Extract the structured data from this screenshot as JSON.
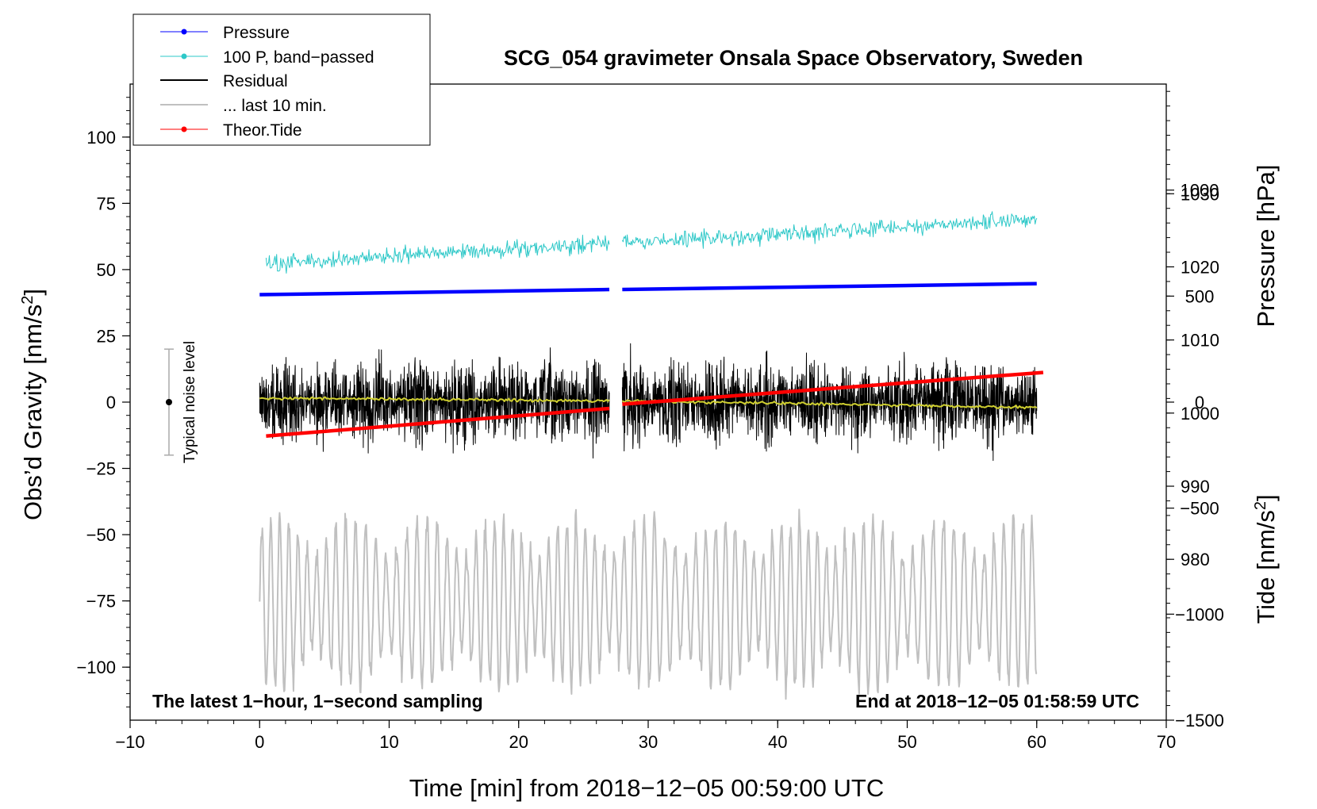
{
  "chart_data": {
    "type": "line",
    "title": "SCG_054 gravimeter Onsala Space Observatory, Sweden",
    "xlabel": "Time [min] from 2018−12−05 00:59:00 UTC",
    "ylabel_left": "Obs’d Gravity [nm/s²]",
    "ylabel_right_top": "Pressure [hPa]",
    "ylabel_right_bottom": "Tide [nm/s²]",
    "xlim": [
      -10,
      70
    ],
    "ylim_left": [
      -120,
      120
    ],
    "xticks": [
      {
        "v": -10,
        "label": "−10"
      },
      {
        "v": 0,
        "label": "0"
      },
      {
        "v": 10,
        "label": "10"
      },
      {
        "v": 20,
        "label": "20"
      },
      {
        "v": 30,
        "label": "30"
      },
      {
        "v": 40,
        "label": "40"
      },
      {
        "v": 50,
        "label": "50"
      },
      {
        "v": 60,
        "label": "60"
      },
      {
        "v": 70,
        "label": "70"
      }
    ],
    "yticks_left": [
      {
        "v": 100,
        "label": "100"
      },
      {
        "v": 75,
        "label": "75"
      },
      {
        "v": 50,
        "label": "50"
      },
      {
        "v": 25,
        "label": "25"
      },
      {
        "v": 0,
        "label": "0"
      },
      {
        "v": -25,
        "label": "−25"
      },
      {
        "v": -50,
        "label": "−50"
      },
      {
        "v": -75,
        "label": "−75"
      },
      {
        "v": -100,
        "label": "−100"
      }
    ],
    "pressure_axis": {
      "range": [
        958,
        1045
      ],
      "ticks": [
        {
          "v": 1030,
          "label": "1030"
        },
        {
          "v": 1020,
          "label": "1020"
        },
        {
          "v": 1010,
          "label": "1010"
        },
        {
          "v": 1000,
          "label": "1000"
        },
        {
          "v": 990,
          "label": "990"
        },
        {
          "v": 980,
          "label": "980"
        }
      ]
    },
    "tide_axis": {
      "range": [
        -1500,
        1500
      ],
      "ticks": [
        {
          "v": 1000,
          "label": "1000"
        },
        {
          "v": 500,
          "label": "500"
        },
        {
          "v": 0,
          "label": "0"
        },
        {
          "v": -500,
          "label": "−500"
        },
        {
          "v": -1000,
          "label": "−1000"
        },
        {
          "v": -1500,
          "label": "−1500"
        }
      ]
    },
    "legend": [
      {
        "label": "Pressure",
        "color": "#0000ff",
        "marker": true
      },
      {
        "label": "100 P, band−passed",
        "color": "#2ec8c8",
        "marker": true
      },
      {
        "label": "Residual",
        "color": "#000000",
        "marker": false
      },
      {
        "label": "... last 10 min.",
        "color": "#c0c0c0",
        "marker": false
      },
      {
        "label": "Theor.Tide",
        "color": "#ff0000",
        "marker": true
      }
    ],
    "series": [
      {
        "name": "Pressure",
        "color": "#0000ff",
        "unit": "hPa",
        "segments": [
          [
            0,
            27,
            1016.2,
            1016.9
          ],
          [
            28,
            60,
            1016.9,
            1017.7
          ]
        ]
      },
      {
        "name": "100 P, band-passed",
        "color": "#2ec8c8",
        "unit": "nm/s2",
        "segments": [
          [
            0.5,
            27,
            52,
            60
          ],
          [
            28,
            60,
            60,
            69
          ]
        ],
        "noise_amplitude": 5
      },
      {
        "name": "Residual",
        "color": "#000000",
        "unit": "nm/s2",
        "segments": [
          [
            0,
            27
          ],
          [
            28,
            60
          ]
        ],
        "noise_amplitude": 25
      },
      {
        "name": "Residual smoothed",
        "color": "#d0d030",
        "unit": "nm/s2",
        "segments": [
          [
            0,
            27,
            1.5,
            0.5
          ],
          [
            28,
            60,
            0.5,
            -2
          ]
        ]
      },
      {
        "name": "... last 10 min.",
        "color": "#c0c0c0",
        "unit": "nm/s2",
        "segments": [
          [
            0,
            60
          ]
        ],
        "center": -76,
        "amplitude": 28
      },
      {
        "name": "Theor.Tide",
        "color": "#ff0000",
        "unit": "nm/s2 (tide axis)",
        "segments": [
          [
            0.5,
            27,
            -160,
            -30
          ],
          [
            28,
            60.5,
            -10,
            140
          ]
        ]
      }
    ],
    "noise_bar": {
      "x": -7,
      "center": 0,
      "half_range": 20,
      "label": "Typical noise level"
    },
    "annotations": {
      "left": "The latest 1−hour, 1−second sampling",
      "right": "End at 2018−12−05 01:58:59 UTC"
    }
  }
}
